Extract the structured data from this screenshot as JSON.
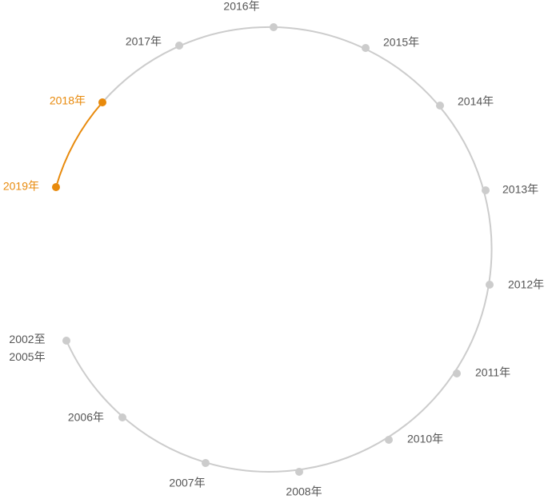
{
  "nodes": [
    {
      "label": [
        "2002至",
        "2005年"
      ]
    },
    {
      "label": "2006年"
    },
    {
      "label": "2007年"
    },
    {
      "label": "2008年"
    },
    {
      "label": "2010年"
    },
    {
      "label": "2011年"
    },
    {
      "label": "2012年"
    },
    {
      "label": "2013年"
    },
    {
      "label": "2014年"
    },
    {
      "label": "2015年"
    },
    {
      "label": "2016年"
    },
    {
      "label": "2017年"
    },
    {
      "label": "2018年",
      "active": true
    },
    {
      "label": "2019年",
      "active": true
    }
  ]
}
